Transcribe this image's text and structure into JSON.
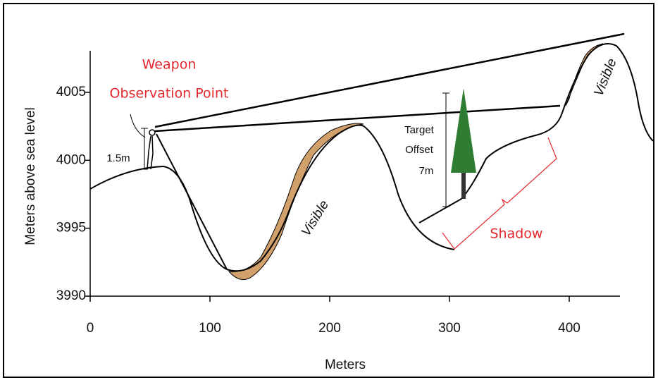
{
  "axes": {
    "y_label": "Meters above sea level",
    "x_label": "Meters",
    "xticks": [
      0,
      100,
      200,
      300,
      400
    ],
    "yticks": [
      3990,
      3995,
      4000,
      4005
    ]
  },
  "annotations": {
    "weapon_observation_point": [
      "Weapon",
      "Observation Point"
    ],
    "observer_height": "1.5m",
    "target_offset": [
      "Target",
      "Offset",
      "7m"
    ],
    "visible_labels": [
      "Visible",
      "Visible"
    ],
    "shadow": "Shadow"
  }
}
